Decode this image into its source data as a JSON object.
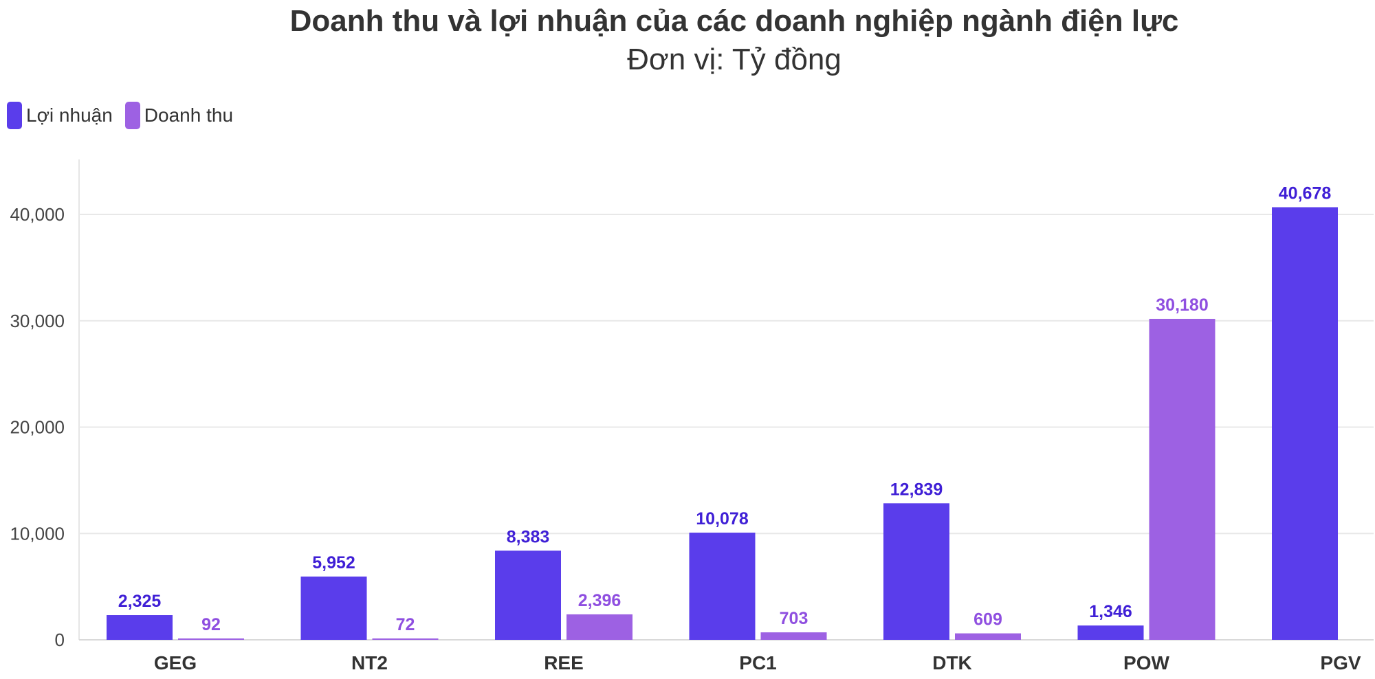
{
  "chart_data": {
    "type": "bar",
    "title": "Doanh thu và lợi nhuận của các doanh nghiệp ngành điện lực",
    "subtitle": "Đơn vị: Tỷ đồng",
    "categories": [
      "GEG",
      "NT2",
      "REE",
      "PC1",
      "DTK",
      "POW",
      "PGV"
    ],
    "series": [
      {
        "name": "Lợi nhuận",
        "color": "#5a3deb",
        "label_color": "#3f1fd6",
        "values": [
          2325,
          5952,
          8383,
          10078,
          12839,
          1346,
          40678
        ],
        "labels": [
          "2,325",
          "5,952",
          "8,383",
          "10,078",
          "12,839",
          "1,346",
          "40,678"
        ]
      },
      {
        "name": "Doanh thu",
        "color": "#9d61e3",
        "label_color": "#8f4fe0",
        "values": [
          92,
          72,
          2396,
          703,
          609,
          30180,
          null
        ],
        "labels": [
          "92",
          "72",
          "2,396",
          "703",
          "609",
          "30,180",
          ""
        ]
      }
    ],
    "ylim": [
      0,
      45000
    ],
    "yticks": [
      0,
      10000,
      20000,
      30000,
      40000
    ],
    "ytick_labels": [
      "0",
      "10,000",
      "20,000",
      "30,000",
      "40,000"
    ],
    "xlabel": "",
    "ylabel": "",
    "legend_position": "top-left",
    "grid": true
  }
}
